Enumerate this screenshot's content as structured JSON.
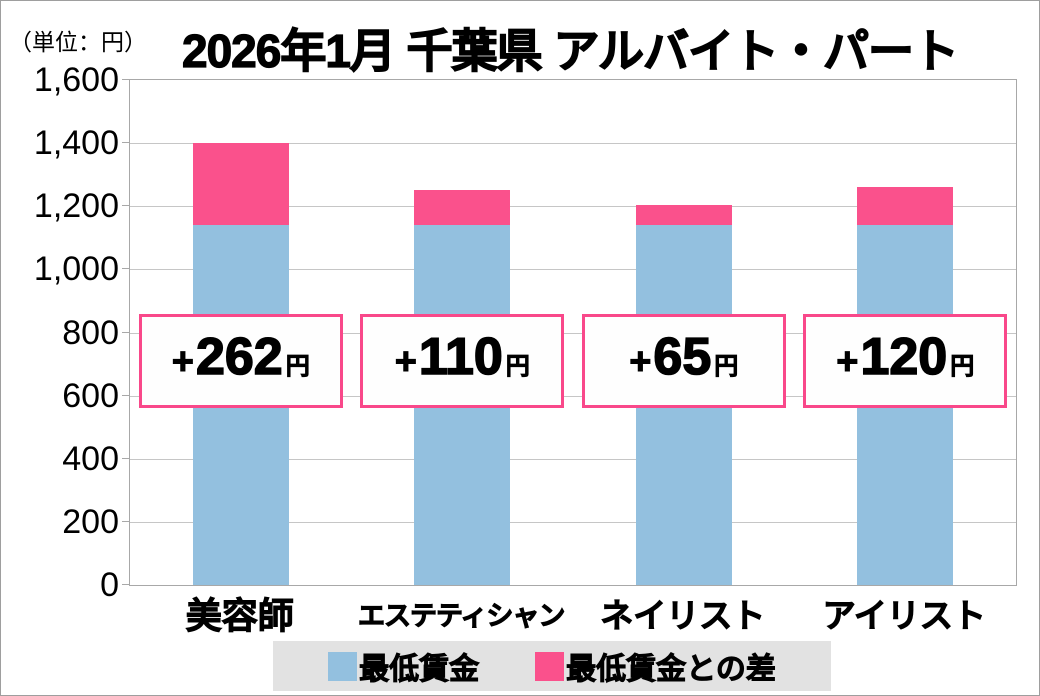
{
  "meta": {
    "unit_label": "（単位：円）",
    "title": "2026年1月 千葉県 アルバイト・パート"
  },
  "colors": {
    "min_wage_blue": "#93c0df",
    "diff_pink": "#fa518c",
    "annotation_border_pink": "#f9488a",
    "grid_gray": "#c6c6c6",
    "axis_gray": "#a8a8a8",
    "legend_bg_gray": "#e2e2e2"
  },
  "chart_data": {
    "type": "bar",
    "stacked": true,
    "title": "2026年1月 千葉県 アルバイト・パート",
    "unit": "円",
    "categories": [
      "美容師",
      "エステティシャン",
      "ネイリスト",
      "アイリスト"
    ],
    "series": [
      {
        "name": "最低賃金",
        "values": [
          1140,
          1140,
          1140,
          1140
        ]
      },
      {
        "name": "最低賃金との差",
        "values": [
          262,
          110,
          65,
          120
        ]
      }
    ],
    "totals": [
      1402,
      1250,
      1205,
      1260
    ],
    "annotations": [
      {
        "sign": "+",
        "amount": "262",
        "unit": "円"
      },
      {
        "sign": "+",
        "amount": "110",
        "unit": "円"
      },
      {
        "sign": "+",
        "amount": "65",
        "unit": "円"
      },
      {
        "sign": "+",
        "amount": "120",
        "unit": "円"
      }
    ],
    "ylim": [
      0,
      1600
    ],
    "ytick_step": 200,
    "ytick_labels": [
      "0",
      "200",
      "400",
      "600",
      "800",
      "1,000",
      "1,200",
      "1,400",
      "1,600"
    ],
    "grid": "horizontal",
    "legend_position": "bottom"
  },
  "legend": {
    "items": [
      {
        "label": "最低賃金",
        "color": "#93c0df"
      },
      {
        "label": "最低賃金との差",
        "color": "#fa518c"
      }
    ]
  }
}
